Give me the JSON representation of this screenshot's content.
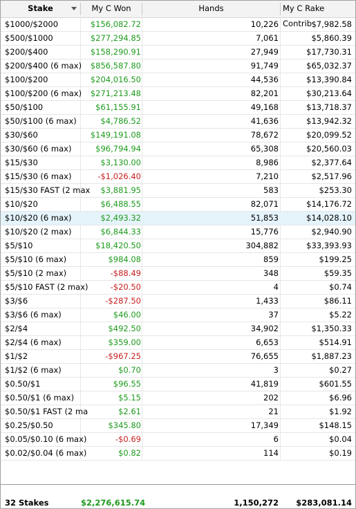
{
  "header": {
    "stake": "Stake",
    "won": "My C Won",
    "hands": "Hands",
    "rake": "My C Rake Contrib"
  },
  "rows": [
    {
      "stake": "$1000/$2000",
      "won": "$156,082.72",
      "won_sign": "pos",
      "hands": "10,226",
      "rake": "$7,982.58"
    },
    {
      "stake": "$500/$1000",
      "won": "$277,294.85",
      "won_sign": "pos",
      "hands": "7,061",
      "rake": "$5,860.39"
    },
    {
      "stake": "$200/$400",
      "won": "$158,290.91",
      "won_sign": "pos",
      "hands": "27,949",
      "rake": "$17,730.31"
    },
    {
      "stake": "$200/$400 (6 max)",
      "won": "$856,587.80",
      "won_sign": "pos",
      "hands": "91,749",
      "rake": "$65,032.37"
    },
    {
      "stake": "$100/$200",
      "won": "$204,016.50",
      "won_sign": "pos",
      "hands": "44,536",
      "rake": "$13,390.84"
    },
    {
      "stake": "$100/$200 (6 max)",
      "won": "$271,213.48",
      "won_sign": "pos",
      "hands": "82,201",
      "rake": "$30,213.64"
    },
    {
      "stake": "$50/$100",
      "won": "$61,155.91",
      "won_sign": "pos",
      "hands": "49,168",
      "rake": "$13,718.37"
    },
    {
      "stake": "$50/$100 (6 max)",
      "won": "$4,786.52",
      "won_sign": "pos",
      "hands": "41,636",
      "rake": "$13,942.32"
    },
    {
      "stake": "$30/$60",
      "won": "$149,191.08",
      "won_sign": "pos",
      "hands": "78,672",
      "rake": "$20,099.52"
    },
    {
      "stake": "$30/$60 (6 max)",
      "won": "$96,794.94",
      "won_sign": "pos",
      "hands": "65,308",
      "rake": "$20,560.03"
    },
    {
      "stake": "$15/$30",
      "won": "$3,130.00",
      "won_sign": "pos",
      "hands": "8,986",
      "rake": "$2,377.64"
    },
    {
      "stake": "$15/$30 (6 max)",
      "won": "-$1,026.40",
      "won_sign": "neg",
      "hands": "7,210",
      "rake": "$2,517.96"
    },
    {
      "stake": "$15/$30 FAST (2 max",
      "won": "$3,881.95",
      "won_sign": "pos",
      "hands": "583",
      "rake": "$253.30"
    },
    {
      "stake": "$10/$20",
      "won": "$6,488.55",
      "won_sign": "pos",
      "hands": "82,071",
      "rake": "$14,176.72"
    },
    {
      "stake": "$10/$20 (6 max)",
      "won": "$2,493.32",
      "won_sign": "pos",
      "hands": "51,853",
      "rake": "$14,028.10",
      "selected": true
    },
    {
      "stake": "$10/$20 (2 max)",
      "won": "$6,844.33",
      "won_sign": "pos",
      "hands": "15,776",
      "rake": "$2,940.90"
    },
    {
      "stake": "$5/$10",
      "won": "$18,420.50",
      "won_sign": "pos",
      "hands": "304,882",
      "rake": "$33,393.93"
    },
    {
      "stake": "$5/$10 (6 max)",
      "won": "$984.08",
      "won_sign": "pos",
      "hands": "859",
      "rake": "$199.25"
    },
    {
      "stake": "$5/$10 (2 max)",
      "won": "-$88.49",
      "won_sign": "neg",
      "hands": "348",
      "rake": "$59.35"
    },
    {
      "stake": "$5/$10 FAST (2 max)",
      "won": "-$20.50",
      "won_sign": "neg",
      "hands": "4",
      "rake": "$0.74"
    },
    {
      "stake": "$3/$6",
      "won": "-$287.50",
      "won_sign": "neg",
      "hands": "1,433",
      "rake": "$86.11"
    },
    {
      "stake": "$3/$6 (6 max)",
      "won": "$46.00",
      "won_sign": "pos",
      "hands": "37",
      "rake": "$5.22"
    },
    {
      "stake": "$2/$4",
      "won": "$492.50",
      "won_sign": "pos",
      "hands": "34,902",
      "rake": "$1,350.33"
    },
    {
      "stake": "$2/$4 (6 max)",
      "won": "$359.00",
      "won_sign": "pos",
      "hands": "6,653",
      "rake": "$514.91"
    },
    {
      "stake": "$1/$2",
      "won": "-$967.25",
      "won_sign": "neg",
      "hands": "76,655",
      "rake": "$1,887.23"
    },
    {
      "stake": "$1/$2 (6 max)",
      "won": "$0.70",
      "won_sign": "pos",
      "hands": "3",
      "rake": "$0.27"
    },
    {
      "stake": "$0.50/$1",
      "won": "$96.55",
      "won_sign": "pos",
      "hands": "41,819",
      "rake": "$601.55"
    },
    {
      "stake": "$0.50/$1 (6 max)",
      "won": "$5.15",
      "won_sign": "pos",
      "hands": "202",
      "rake": "$6.96"
    },
    {
      "stake": "$0.50/$1 FAST (2 ma",
      "won": "$2.61",
      "won_sign": "pos",
      "hands": "21",
      "rake": "$1.92"
    },
    {
      "stake": "$0.25/$0.50",
      "won": "$345.80",
      "won_sign": "pos",
      "hands": "17,349",
      "rake": "$148.15"
    },
    {
      "stake": "$0.05/$0.10 (6 max)",
      "won": "-$0.69",
      "won_sign": "neg",
      "hands": "6",
      "rake": "$0.04"
    },
    {
      "stake": "$0.02/$0.04 (6 max)",
      "won": "$0.82",
      "won_sign": "pos",
      "hands": "114",
      "rake": "$0.19"
    }
  ],
  "footer": {
    "stake": "32 Stakes",
    "won": "$2,276,615.74",
    "hands": "1,150,272",
    "rake": "$283,081.14"
  },
  "colors": {
    "positive": "#1e9b1e",
    "negative": "#c81e1e",
    "selected_row": "#e5f3fb"
  }
}
